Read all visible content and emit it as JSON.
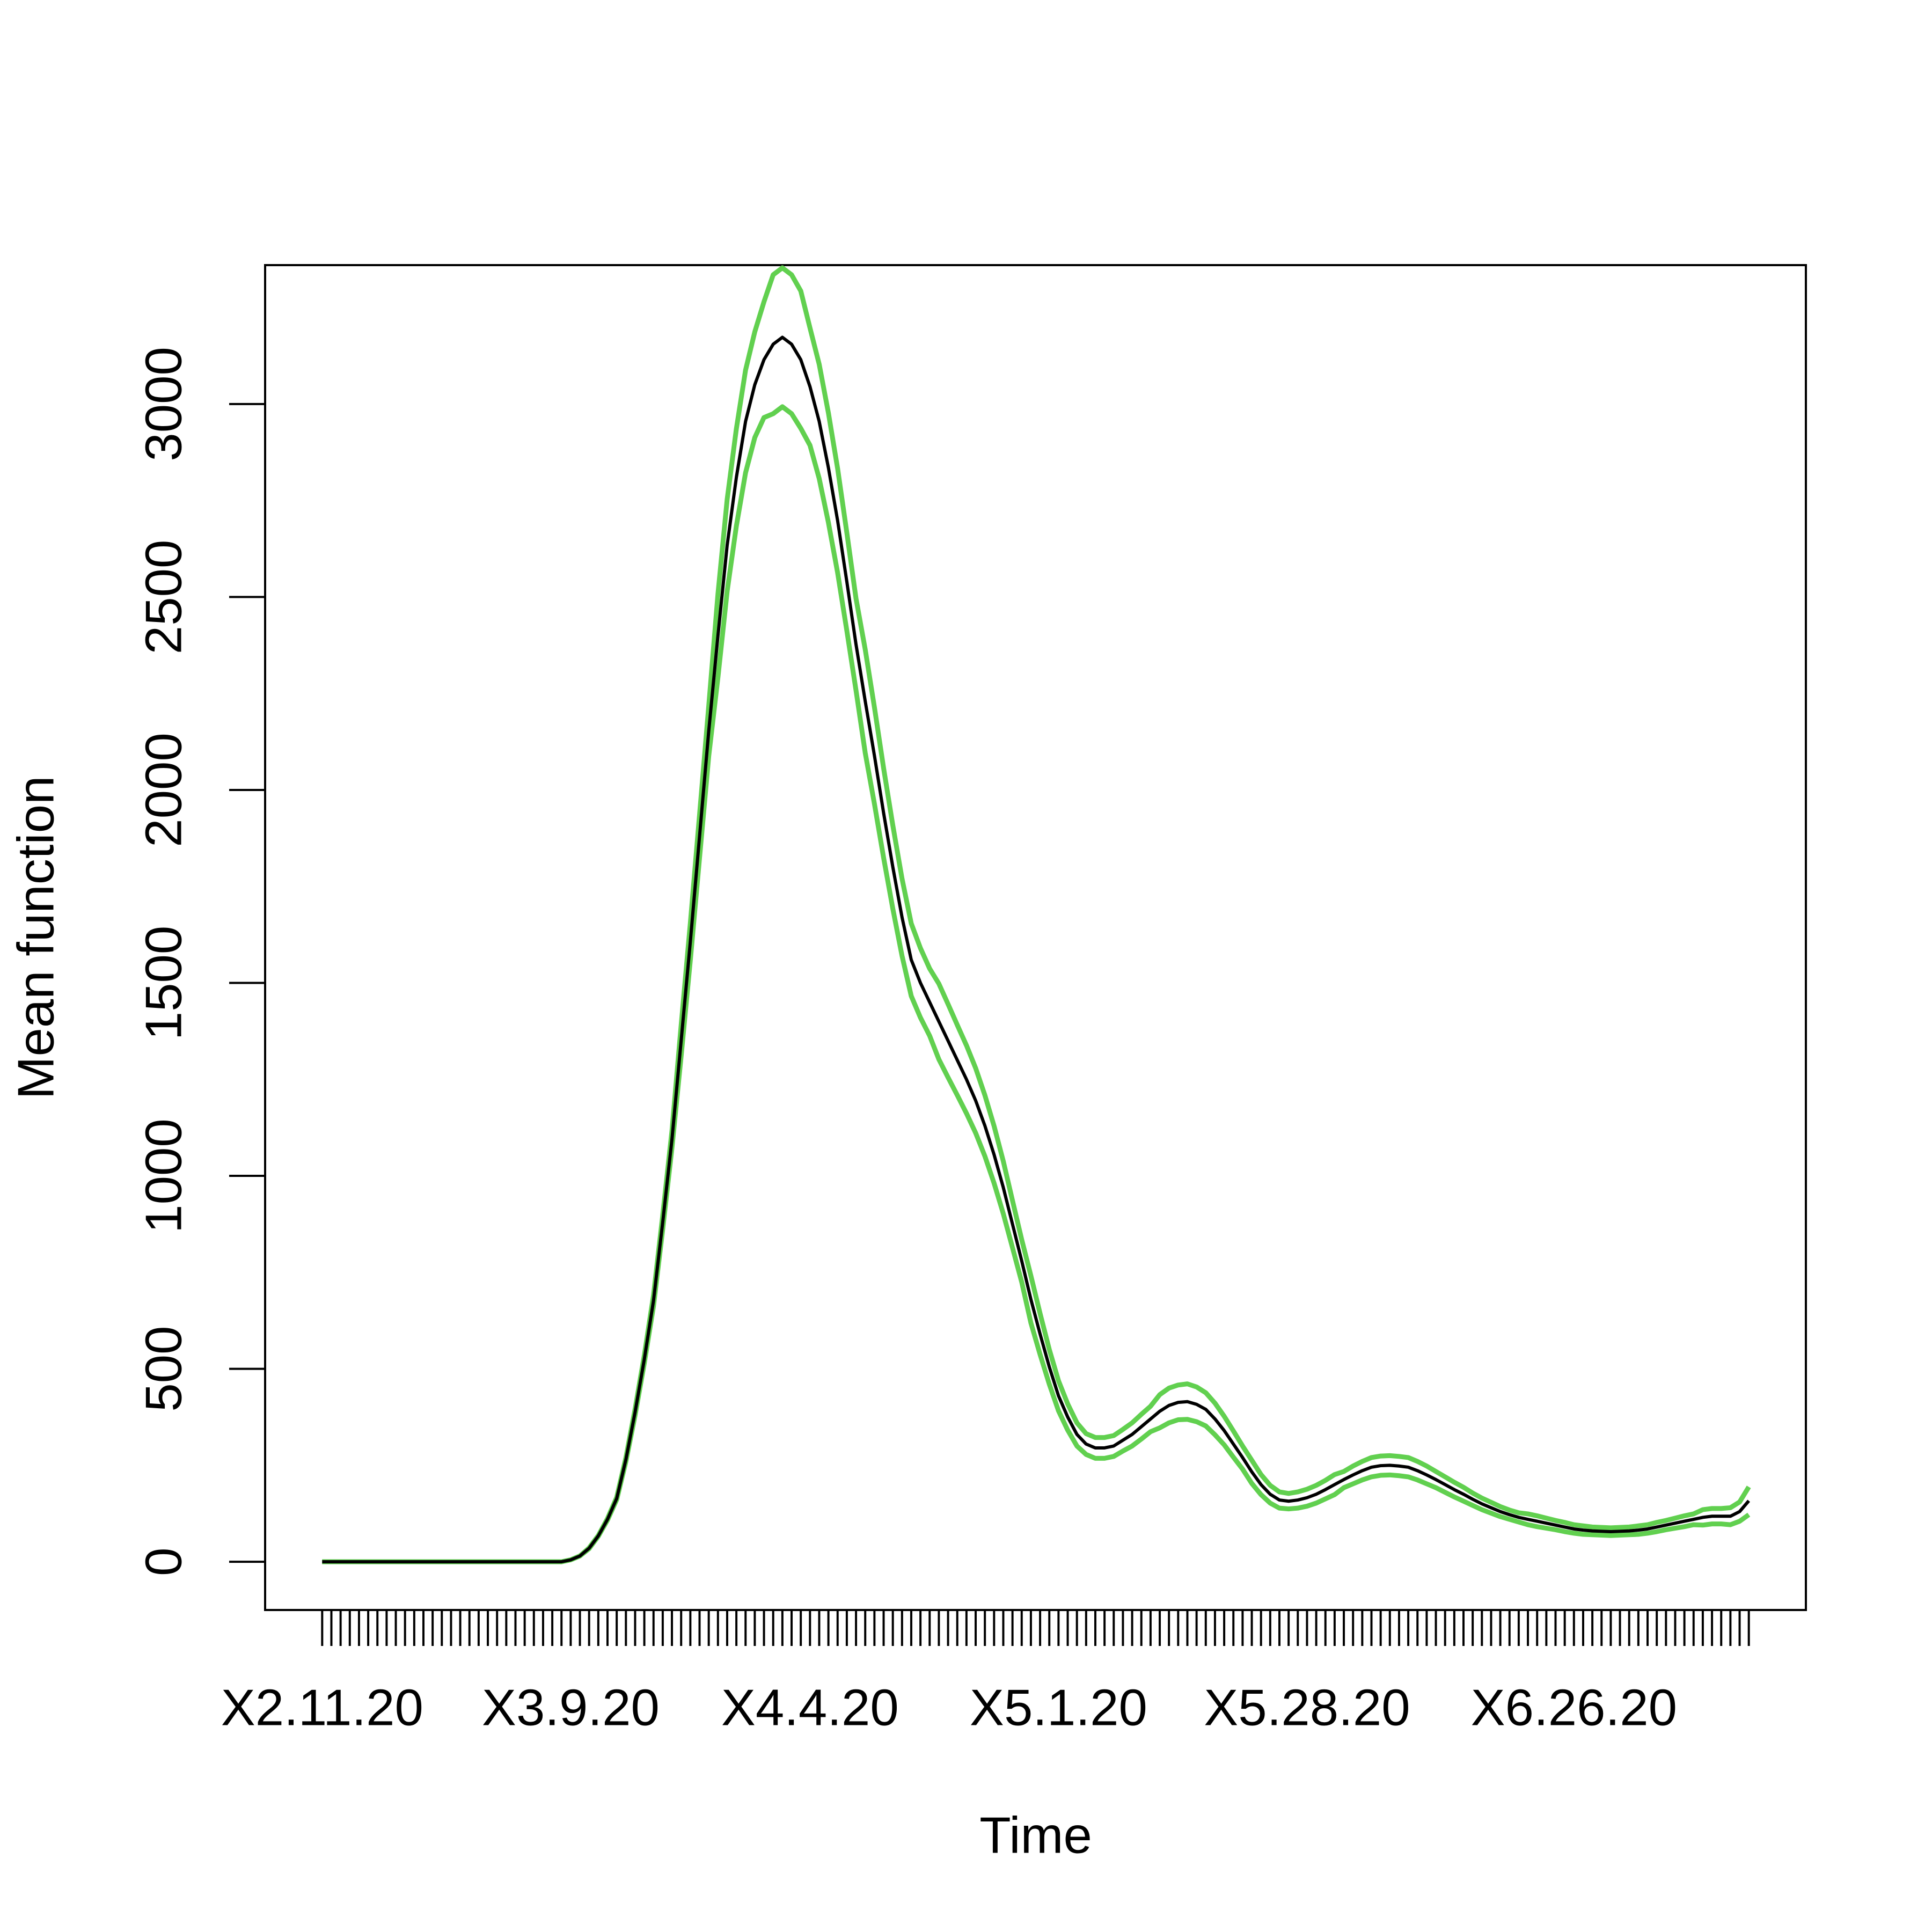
{
  "chart_data": {
    "type": "line",
    "x_label": "Time",
    "y_label": "Mean function",
    "categories": [
      "X2.11.20",
      null,
      null,
      null,
      null,
      null,
      null,
      null,
      null,
      null,
      null,
      null,
      null,
      null,
      null,
      null,
      null,
      null,
      null,
      null,
      null,
      null,
      null,
      null,
      null,
      null,
      null,
      "X3.9.20",
      null,
      null,
      null,
      null,
      null,
      null,
      null,
      null,
      null,
      null,
      null,
      null,
      null,
      null,
      null,
      null,
      null,
      null,
      null,
      null,
      null,
      null,
      null,
      null,
      null,
      "X4.4.20",
      null,
      null,
      null,
      null,
      null,
      null,
      null,
      null,
      null,
      null,
      null,
      null,
      null,
      null,
      null,
      null,
      null,
      null,
      null,
      null,
      null,
      null,
      null,
      null,
      null,
      null,
      "X5.1.20",
      null,
      null,
      null,
      null,
      null,
      null,
      null,
      null,
      null,
      null,
      null,
      null,
      null,
      null,
      null,
      null,
      null,
      null,
      null,
      null,
      null,
      null,
      null,
      null,
      null,
      null,
      "X5.28.20",
      null,
      null,
      null,
      null,
      null,
      null,
      null,
      null,
      null,
      null,
      null,
      null,
      null,
      null,
      null,
      null,
      null,
      null,
      null,
      null,
      null,
      null,
      null,
      null,
      null,
      null,
      null,
      null,
      "X6.26.20",
      null,
      null,
      null,
      null,
      null,
      null,
      null,
      null,
      null,
      null,
      null,
      null,
      null,
      null,
      null,
      null,
      null,
      null,
      null
    ],
    "series": [
      {
        "color": "#61d04f",
        "values": [
          0,
          0,
          0,
          0,
          0,
          0,
          0,
          0,
          0,
          0,
          0,
          0,
          0,
          0,
          0,
          0,
          0,
          0,
          0,
          0,
          0,
          0,
          0,
          0,
          0,
          0,
          0,
          5,
          15,
          36,
          68,
          112,
          167,
          270,
          396,
          535,
          691,
          898,
          1116,
          1390,
          1655,
          1936,
          2218,
          2508,
          2753,
          2936,
          3088,
          3187,
          3265,
          3335,
          3353,
          3335,
          3293,
          3197,
          3103,
          2977,
          2833,
          2667,
          2496,
          2364,
          2214,
          2056,
          1908,
          1770,
          1654,
          1590,
          1537,
          1498,
          1445,
          1391,
          1338,
          1279,
          1209,
          1129,
          1038,
          936,
          835,
          741,
          643,
          550,
          469,
          409,
          360,
          332,
          322,
          322,
          327,
          343,
          360,
          382,
          403,
          433,
          450,
          458,
          461,
          453,
          438,
          411,
          377,
          339,
          300,
          263,
          226,
          198,
          181,
          177,
          181,
          188,
          198,
          211,
          226,
          234,
          248,
          260,
          270,
          274,
          275,
          273,
          270,
          260,
          248,
          234,
          220,
          206,
          193,
          178,
          165,
          154,
          143,
          134,
          127,
          124,
          119,
          113,
          107,
          102,
          96,
          93,
          90,
          89,
          88,
          89,
          90,
          93,
          96,
          102,
          107,
          113,
          119,
          124,
          135,
          138,
          138,
          140,
          155,
          194
        ]
      },
      {
        "color": "#61d04f",
        "values": [
          0,
          0,
          0,
          0,
          0,
          0,
          0,
          0,
          0,
          0,
          0,
          0,
          0,
          0,
          0,
          0,
          0,
          0,
          0,
          0,
          0,
          0,
          0,
          0,
          0,
          0,
          0,
          5,
          15,
          34,
          66,
          108,
          161,
          260,
          380,
          515,
          663,
          862,
          1072,
          1310,
          1559,
          1824,
          2088,
          2292,
          2515,
          2684,
          2822,
          2913,
          2965,
          2975,
          2993,
          2975,
          2937,
          2893,
          2807,
          2693,
          2563,
          2413,
          2258,
          2096,
          1964,
          1824,
          1692,
          1570,
          1466,
          1410,
          1363,
          1302,
          1255,
          1209,
          1162,
          1111,
          1051,
          981,
          902,
          814,
          725,
          619,
          537,
          460,
          391,
          341,
          300,
          278,
          268,
          268,
          273,
          287,
          300,
          318,
          337,
          347,
          360,
          368,
          369,
          363,
          352,
          329,
          303,
          271,
          240,
          203,
          174,
          152,
          139,
          137,
          139,
          144,
          152,
          163,
          174,
          192,
          202,
          212,
          220,
          224,
          225,
          223,
          220,
          212,
          202,
          192,
          180,
          168,
          157,
          146,
          135,
          126,
          117,
          110,
          103,
          96,
          91,
          87,
          83,
          78,
          74,
          71,
          70,
          69,
          68,
          69,
          70,
          71,
          74,
          78,
          83,
          87,
          91,
          96,
          95,
          98,
          98,
          96,
          105,
          122
        ]
      },
      {
        "color": "#000000",
        "values": [
          0,
          0,
          0,
          0,
          0,
          0,
          0,
          0,
          0,
          0,
          0,
          0,
          0,
          0,
          0,
          0,
          0,
          0,
          0,
          0,
          0,
          0,
          0,
          0,
          0,
          0,
          0,
          5,
          15,
          35,
          67,
          110,
          164,
          265,
          388,
          525,
          677,
          880,
          1094,
          1350,
          1607,
          1880,
          2153,
          2400,
          2634,
          2810,
          2955,
          3050,
          3115,
          3155,
          3173,
          3155,
          3115,
          3045,
          2955,
          2835,
          2698,
          2540,
          2377,
          2230,
          2089,
          1940,
          1800,
          1670,
          1560,
          1500,
          1450,
          1400,
          1350,
          1300,
          1250,
          1195,
          1130,
          1055,
          970,
          875,
          780,
          680,
          590,
          505,
          430,
          375,
          330,
          305,
          295,
          295,
          300,
          315,
          330,
          350,
          370,
          390,
          405,
          413,
          415,
          408,
          395,
          370,
          340,
          305,
          270,
          233,
          200,
          175,
          160,
          157,
          160,
          166,
          175,
          187,
          200,
          213,
          225,
          236,
          245,
          249,
          250,
          248,
          245,
          236,
          225,
          213,
          200,
          187,
          175,
          162,
          150,
          140,
          130,
          122,
          115,
          110,
          105,
          100,
          95,
          90,
          85,
          82,
          80,
          79,
          78,
          79,
          80,
          82,
          85,
          90,
          95,
          100,
          105,
          110,
          115,
          118,
          118,
          118,
          130,
          158
        ]
      }
    ],
    "ylim": [
      -125,
      3360
    ],
    "yticks": [
      0,
      500,
      1000,
      1500,
      2000,
      2500,
      3000
    ],
    "grid": false
  }
}
